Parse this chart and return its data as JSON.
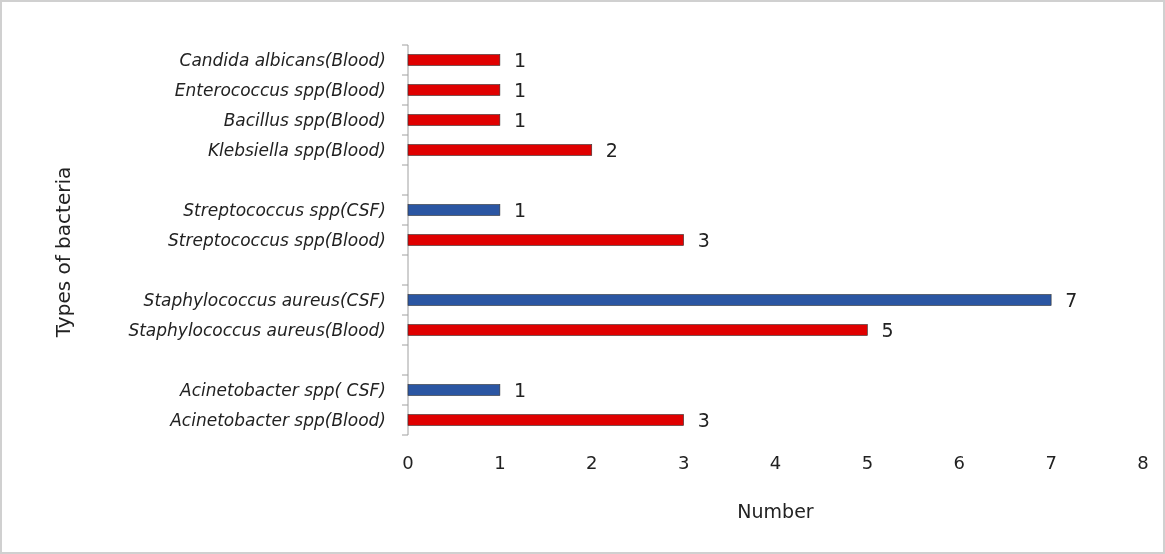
{
  "chart_data": {
    "type": "bar",
    "orientation": "horizontal",
    "xlabel": "Number",
    "ylabel": "Types of bacteria",
    "categories": [
      "Candida albicans(Blood)",
      "Enterococcus spp(Blood)",
      "Bacillus spp(Blood)",
      "Klebsiella spp(Blood)",
      null,
      "Streptococcus spp(CSF)",
      "Streptococcus spp(Blood)",
      null,
      "Staphylococcus aureus(CSF)",
      "Staphylococcus aureus(Blood)",
      null,
      "Acinetobacter spp( CSF)",
      "Acinetobacter spp(Blood)"
    ],
    "values": [
      1,
      1,
      1,
      2,
      null,
      1,
      3,
      null,
      7,
      5,
      null,
      1,
      3
    ],
    "colors": [
      "#e00000",
      "#e00000",
      "#e00000",
      "#e00000",
      null,
      "#2b56a3",
      "#e00000",
      null,
      "#2b56a3",
      "#e00000",
      null,
      "#2b56a3",
      "#e00000"
    ],
    "xlim": [
      0,
      8
    ],
    "xticks": [
      0,
      1,
      2,
      3,
      4,
      5,
      6,
      7,
      8
    ],
    "data_labels": true,
    "grid": false
  }
}
